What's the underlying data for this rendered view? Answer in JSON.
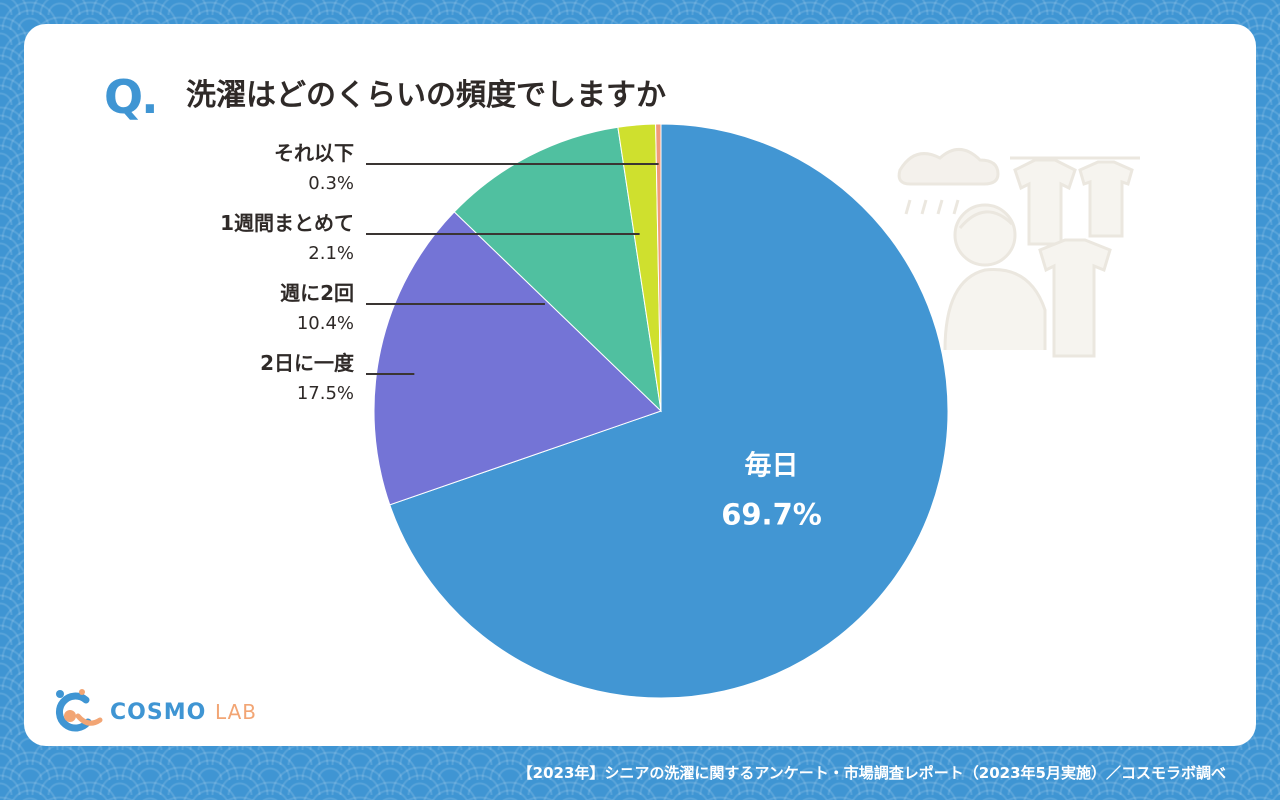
{
  "header": {
    "q_mark": "Q.",
    "question": "洗濯はどのくらいの頻度でしますか"
  },
  "logo": {
    "brand": "COSMO",
    "suffix": "LAB"
  },
  "footer": {
    "source": "【2023年】シニアの洗濯に関するアンケート・市場調査レポート（2023年5月実施）／コスモラボ調べ"
  },
  "chart_data": {
    "type": "pie",
    "title": "洗濯はどのくらいの頻度でしますか",
    "unit": "%",
    "slices": [
      {
        "label": "毎日",
        "value": 69.7,
        "value_text": "69.7%",
        "color": "#4296d3",
        "label_position": "inside"
      },
      {
        "label": "2日に一度",
        "value": 17.5,
        "value_text": "17.5%",
        "color": "#7474d6",
        "label_position": "outside"
      },
      {
        "label": "週に2回",
        "value": 10.4,
        "value_text": "10.4%",
        "color": "#50c0a0",
        "label_position": "outside"
      },
      {
        "label": "1週間まとめて",
        "value": 2.1,
        "value_text": "2.1%",
        "color": "#cfe02e",
        "label_position": "outside"
      },
      {
        "label": "それ以下",
        "value": 0.3,
        "value_text": "0.3%",
        "color": "#f09a7a",
        "label_position": "outside"
      }
    ],
    "legend": "none"
  },
  "colors": {
    "accent": "#3f95d3",
    "text": "#2f2a28",
    "logo_orange": "#f2a574"
  }
}
